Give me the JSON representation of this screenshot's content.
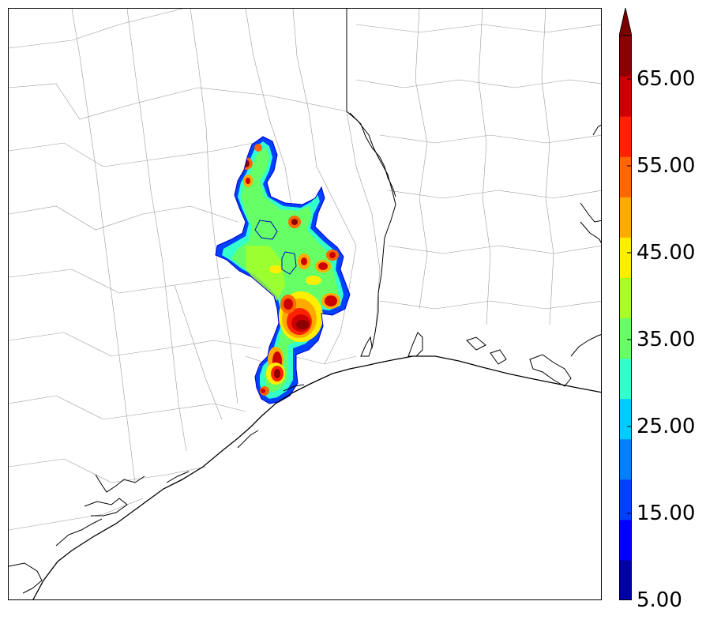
{
  "map": {
    "field": "precipitation contour field",
    "background_color": "#ffffff",
    "coastline_color": "#000000",
    "county_line_color": "#9a9a9a"
  },
  "colorbar": {
    "extend": "max",
    "levels": [
      5,
      10,
      15,
      20,
      25,
      30,
      35,
      40,
      45,
      50,
      55,
      60,
      65,
      70
    ],
    "colors": [
      "#0000a8",
      "#0000ff",
      "#0040ff",
      "#0080ff",
      "#00ccff",
      "#33ffcc",
      "#66ff66",
      "#aaff22",
      "#ffee00",
      "#ffaa00",
      "#ff6600",
      "#ff2200",
      "#cc0000",
      "#8b0000"
    ],
    "extend_color": "#7a0000",
    "tick_labels": [
      "5.00",
      "15.00",
      "25.00",
      "35.00",
      "45.00",
      "55.00",
      "65.00"
    ]
  }
}
